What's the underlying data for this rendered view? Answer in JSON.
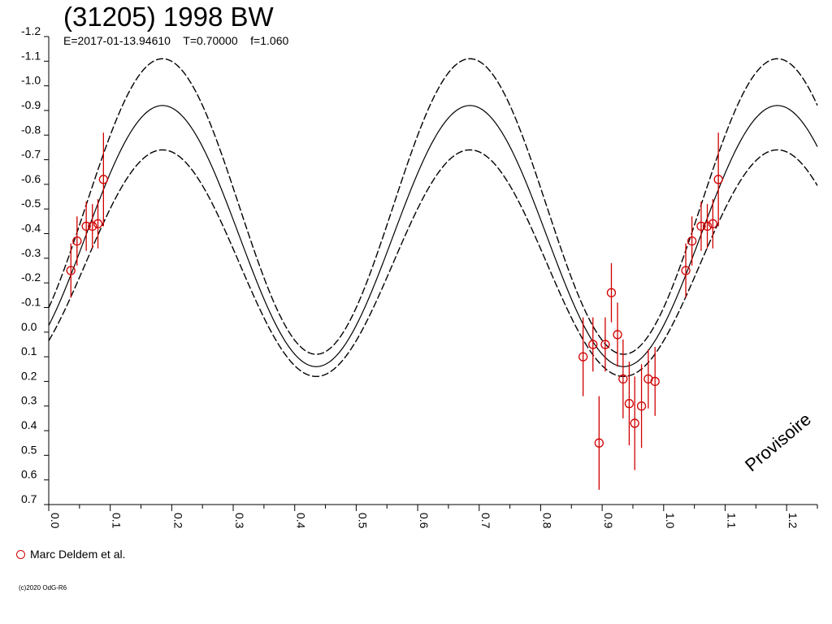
{
  "header": {
    "title": "(31205) 1998 BW",
    "epoch_text": "E=2017-01-13.94610",
    "period_text": "T=0.70000",
    "f_text": "f=1.060"
  },
  "legend": {
    "label": "Marc Deldem et al.",
    "color": "#d00000"
  },
  "copyright": "(c)2020 OdG-R6",
  "watermark": "Provisoire",
  "chart_data": {
    "type": "scatter",
    "x_ticks": [
      "0.0",
      "0.1",
      "0.2",
      "0.3",
      "0.4",
      "0.5",
      "0.6",
      "0.7",
      "0.8",
      "0.9",
      "1.0",
      "1.1",
      "1.2"
    ],
    "y_ticks": [
      "-1.2",
      "-1.1",
      "-1.0",
      "-0.9",
      "-0.8",
      "-0.7",
      "-0.6",
      "-0.5",
      "-0.4",
      "-0.3",
      "-0.2",
      "-0.1",
      "0.0",
      "0.1",
      "0.2",
      "0.3",
      "0.4",
      "0.5",
      "0.6",
      "0.7"
    ],
    "xlim": [
      0.0,
      1.25
    ],
    "ylim": [
      -1.2,
      0.7
    ],
    "y_inverted": true,
    "curves": {
      "function": "sinusoid",
      "period": 0.5,
      "peak_phase": 0.185,
      "center": {
        "offset": -0.39,
        "amplitude": 0.53,
        "style": "solid"
      },
      "upper_envelope": {
        "offset": -0.51,
        "amplitude": 0.6,
        "style": "dashed"
      },
      "lower_envelope": {
        "offset": -0.28,
        "amplitude": 0.46,
        "style": "dashed"
      },
      "color": "#000000"
    },
    "series": [
      {
        "name": "Marc Deldem et al.",
        "color": "#d00000",
        "marker": "open-circle",
        "points": [
          {
            "x": 0.036,
            "y": -0.25,
            "err": 0.11
          },
          {
            "x": 0.046,
            "y": -0.37,
            "err": 0.1
          },
          {
            "x": 0.061,
            "y": -0.43,
            "err": 0.1
          },
          {
            "x": 0.071,
            "y": -0.43,
            "err": 0.09
          },
          {
            "x": 0.08,
            "y": -0.44,
            "err": 0.1
          },
          {
            "x": 0.089,
            "y": -0.62,
            "err": 0.19
          },
          {
            "x": 0.869,
            "y": 0.1,
            "err": 0.16
          },
          {
            "x": 0.885,
            "y": 0.05,
            "err": 0.11
          },
          {
            "x": 0.895,
            "y": 0.45,
            "err": 0.19
          },
          {
            "x": 0.905,
            "y": 0.05,
            "err": 0.11
          },
          {
            "x": 0.915,
            "y": -0.16,
            "err": 0.12
          },
          {
            "x": 0.925,
            "y": 0.01,
            "err": 0.13
          },
          {
            "x": 0.934,
            "y": 0.19,
            "err": 0.16
          },
          {
            "x": 0.944,
            "y": 0.29,
            "err": 0.17
          },
          {
            "x": 0.953,
            "y": 0.37,
            "err": 0.19
          },
          {
            "x": 0.964,
            "y": 0.3,
            "err": 0.17
          },
          {
            "x": 0.975,
            "y": 0.19,
            "err": 0.12
          },
          {
            "x": 0.986,
            "y": 0.2,
            "err": 0.14
          },
          {
            "x": 1.036,
            "y": -0.25,
            "err": 0.11
          },
          {
            "x": 1.046,
            "y": -0.37,
            "err": 0.1
          },
          {
            "x": 1.061,
            "y": -0.43,
            "err": 0.1
          },
          {
            "x": 1.071,
            "y": -0.43,
            "err": 0.09
          },
          {
            "x": 1.08,
            "y": -0.44,
            "err": 0.1
          },
          {
            "x": 1.089,
            "y": -0.62,
            "err": 0.19
          }
        ]
      }
    ]
  }
}
